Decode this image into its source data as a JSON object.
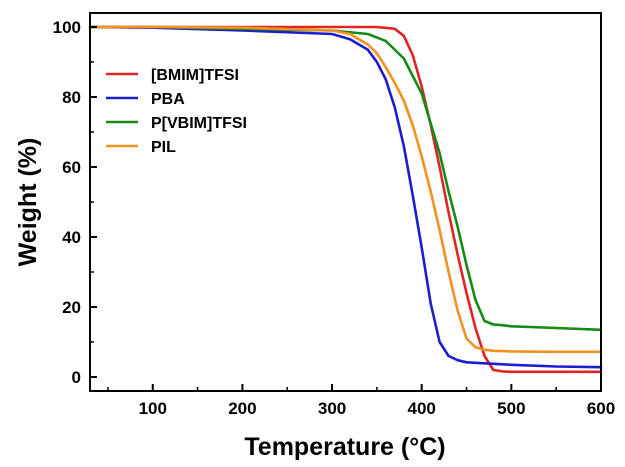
{
  "chart_data": {
    "type": "line",
    "xlabel": "Temperature (°C)",
    "ylabel": "Weight (%)",
    "xlim": [
      30,
      600
    ],
    "ylim": [
      -4,
      104
    ],
    "xticks": [
      100,
      200,
      300,
      400,
      500,
      600
    ],
    "yticks": [
      0,
      20,
      40,
      60,
      80,
      100
    ],
    "legend_position": "upper-left",
    "grid": false,
    "series": [
      {
        "name": "[BMIM]TFSI",
        "color": "#e02424",
        "x": [
          30,
          100,
          200,
          300,
          350,
          370,
          380,
          390,
          400,
          410,
          420,
          430,
          440,
          450,
          460,
          470,
          480,
          490,
          500,
          550,
          600
        ],
        "y": [
          100,
          100,
          100,
          100,
          100,
          99.5,
          97.5,
          92,
          83,
          72,
          60,
          47,
          35,
          24,
          14,
          6,
          2,
          1.6,
          1.5,
          1.5,
          1.5
        ]
      },
      {
        "name": "PBA",
        "color": "#1c1cd0",
        "x": [
          30,
          100,
          200,
          300,
          320,
          340,
          350,
          360,
          370,
          380,
          390,
          400,
          410,
          420,
          430,
          440,
          450,
          500,
          550,
          600
        ],
        "y": [
          100,
          99.8,
          99,
          98,
          96.5,
          93.5,
          90,
          85,
          77,
          66,
          52,
          37,
          21,
          10,
          6,
          4.8,
          4.2,
          3.5,
          3,
          2.8
        ]
      },
      {
        "name": "P[VBIM]TFSI",
        "color": "#158a15",
        "x": [
          30,
          100,
          200,
          300,
          340,
          360,
          380,
          400,
          420,
          430,
          440,
          450,
          460,
          470,
          480,
          490,
          500,
          550,
          600
        ],
        "y": [
          100,
          100,
          99.5,
          99,
          98,
          96,
          91,
          81,
          64,
          53,
          43,
          32,
          22,
          16,
          15,
          14.8,
          14.5,
          14,
          13.5
        ]
      },
      {
        "name": "PIL",
        "color": "#f0921e",
        "x": [
          30,
          100,
          200,
          300,
          320,
          340,
          350,
          360,
          370,
          380,
          390,
          400,
          410,
          420,
          430,
          440,
          450,
          460,
          470,
          480,
          500,
          550,
          600
        ],
        "y": [
          100,
          100,
          99.8,
          99,
          98,
          95,
          92.5,
          88.5,
          84,
          79,
          72,
          63,
          53,
          42,
          30,
          19,
          11,
          8.5,
          7.8,
          7.5,
          7.3,
          7.2,
          7.2
        ]
      }
    ]
  }
}
